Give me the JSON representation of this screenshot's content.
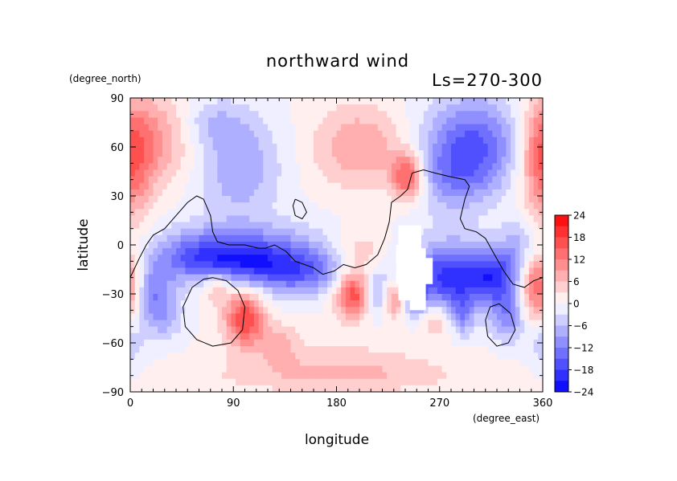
{
  "chart_data": {
    "type": "heatmap",
    "title": "northward wind",
    "subtitle": "Ls=270-300",
    "xlabel": "longitude",
    "ylabel": "latitude",
    "xunits": "(degree_east)",
    "yunits": "(degree_north)",
    "xlim": [
      0,
      360
    ],
    "ylim": [
      -90,
      90
    ],
    "xticks": [
      0,
      90,
      180,
      270,
      360
    ],
    "yticks": [
      -90,
      -60,
      -30,
      0,
      30,
      60,
      90
    ],
    "colorbar": {
      "levels": [
        -24,
        -18,
        -12,
        -6,
        0,
        6,
        12,
        18,
        24
      ],
      "range": [
        -24,
        24
      ],
      "neg_color": "#0000ff",
      "mid_color": "#ffffff",
      "pos_color": "#ff0000"
    },
    "features": [
      {
        "lon": 20,
        "lat": 65,
        "value": 9,
        "sx": 25,
        "sy": 20
      },
      {
        "lon": 0,
        "lat": 50,
        "value": 7,
        "sx": 15,
        "sy": 25
      },
      {
        "lon": 360,
        "lat": 50,
        "value": 6,
        "sx": 12,
        "sy": 25
      },
      {
        "lon": 95,
        "lat": 48,
        "value": -9,
        "sx": 25,
        "sy": 22
      },
      {
        "lon": 70,
        "lat": 75,
        "value": -5,
        "sx": 20,
        "sy": 10
      },
      {
        "lon": 200,
        "lat": 60,
        "value": 9,
        "sx": 28,
        "sy": 18
      },
      {
        "lon": 242,
        "lat": 42,
        "value": 17,
        "sx": 10,
        "sy": 10
      },
      {
        "lon": 300,
        "lat": 62,
        "value": -15,
        "sx": 30,
        "sy": 20
      },
      {
        "lon": 280,
        "lat": 40,
        "value": -7,
        "sx": 25,
        "sy": 15
      },
      {
        "lon": 120,
        "lat": 5,
        "value": -4,
        "sx": 40,
        "sy": 10
      },
      {
        "lon": 100,
        "lat": -10,
        "value": -16,
        "sx": 45,
        "sy": 10
      },
      {
        "lon": 150,
        "lat": -18,
        "value": -10,
        "sx": 30,
        "sy": 10
      },
      {
        "lon": 60,
        "lat": -5,
        "value": -8,
        "sx": 30,
        "sy": 12
      },
      {
        "lon": 200,
        "lat": -5,
        "value": 6,
        "sx": 15,
        "sy": 10
      },
      {
        "lon": 280,
        "lat": -20,
        "value": -20,
        "sx": 25,
        "sy": 15
      },
      {
        "lon": 320,
        "lat": -20,
        "value": -14,
        "sx": 15,
        "sy": 12
      },
      {
        "lon": 195,
        "lat": -30,
        "value": 18,
        "sx": 12,
        "sy": 10
      },
      {
        "lon": 215,
        "lat": -30,
        "value": -10,
        "sx": 8,
        "sy": 10
      },
      {
        "lon": 230,
        "lat": -33,
        "value": 12,
        "sx": 7,
        "sy": 8
      },
      {
        "lon": 250,
        "lat": -30,
        "value": -10,
        "sx": 7,
        "sy": 10
      },
      {
        "lon": 100,
        "lat": -45,
        "value": 18,
        "sx": 12,
        "sy": 12
      },
      {
        "lon": 75,
        "lat": -25,
        "value": 8,
        "sx": 10,
        "sy": 8
      },
      {
        "lon": 20,
        "lat": -30,
        "value": -10,
        "sx": 12,
        "sy": 12
      },
      {
        "lon": 30,
        "lat": -45,
        "value": -6,
        "sx": 12,
        "sy": 10
      },
      {
        "lon": 355,
        "lat": -25,
        "value": 16,
        "sx": 10,
        "sy": 15
      },
      {
        "lon": 340,
        "lat": 0,
        "value": -6,
        "sx": 12,
        "sy": 12
      },
      {
        "lon": 330,
        "lat": -45,
        "value": -10,
        "sx": 10,
        "sy": 10
      },
      {
        "lon": 290,
        "lat": -45,
        "value": -8,
        "sx": 6,
        "sy": 8
      },
      {
        "lon": 265,
        "lat": -45,
        "value": 8,
        "sx": 10,
        "sy": 8
      },
      {
        "lon": 130,
        "lat": -60,
        "value": 6,
        "sx": 12,
        "sy": 8
      },
      {
        "lon": 180,
        "lat": -70,
        "value": 3,
        "sx": 60,
        "sy": 12
      },
      {
        "lon": 180,
        "lat": -80,
        "value": 5,
        "sx": 80,
        "sy": 8
      },
      {
        "lon": 360,
        "lat": -60,
        "value": -5,
        "sx": 10,
        "sy": 10
      }
    ],
    "missing_region": [
      [
        234,
        12
      ],
      [
        254,
        12
      ],
      [
        254,
        -2
      ],
      [
        258,
        -2
      ],
      [
        258,
        -8
      ],
      [
        264,
        -8
      ],
      [
        264,
        -24
      ],
      [
        258,
        -24
      ],
      [
        258,
        -40
      ],
      [
        244,
        -40
      ],
      [
        244,
        -34
      ],
      [
        234,
        -34
      ],
      [
        234,
        -24
      ],
      [
        232,
        -24
      ],
      [
        232,
        0
      ],
      [
        234,
        0
      ]
    ],
    "contours": [
      [
        [
          0,
          -20
        ],
        [
          8,
          -8
        ],
        [
          14,
          0
        ],
        [
          20,
          6
        ],
        [
          30,
          10
        ],
        [
          40,
          18
        ],
        [
          50,
          26
        ],
        [
          58,
          30
        ],
        [
          64,
          28
        ],
        [
          70,
          18
        ],
        [
          72,
          8
        ],
        [
          76,
          2
        ],
        [
          86,
          0
        ],
        [
          100,
          0
        ],
        [
          112,
          -2
        ],
        [
          118,
          -2
        ],
        [
          126,
          0
        ],
        [
          136,
          -4
        ],
        [
          144,
          -10
        ],
        [
          152,
          -12
        ],
        [
          160,
          -14
        ],
        [
          168,
          -18
        ],
        [
          178,
          -16
        ],
        [
          186,
          -12
        ],
        [
          196,
          -14
        ],
        [
          206,
          -12
        ],
        [
          216,
          -6
        ],
        [
          222,
          4
        ],
        [
          226,
          14
        ],
        [
          228,
          26
        ],
        [
          236,
          30
        ],
        [
          242,
          34
        ],
        [
          246,
          44
        ],
        [
          256,
          46
        ],
        [
          266,
          44
        ],
        [
          278,
          42
        ],
        [
          292,
          40
        ],
        [
          296,
          36
        ],
        [
          292,
          28
        ],
        [
          288,
          16
        ],
        [
          292,
          10
        ],
        [
          302,
          8
        ],
        [
          310,
          4
        ],
        [
          318,
          -6
        ],
        [
          326,
          -16
        ],
        [
          334,
          -24
        ],
        [
          344,
          -26
        ],
        [
          352,
          -22
        ],
        [
          360,
          -20
        ]
      ],
      [
        [
          144,
          28
        ],
        [
          150,
          26
        ],
        [
          154,
          20
        ],
        [
          150,
          16
        ],
        [
          144,
          18
        ],
        [
          142,
          24
        ],
        [
          144,
          28
        ]
      ],
      [
        [
          72,
          -20
        ],
        [
          84,
          -22
        ],
        [
          94,
          -28
        ],
        [
          100,
          -38
        ],
        [
          98,
          -52
        ],
        [
          88,
          -60
        ],
        [
          72,
          -62
        ],
        [
          58,
          -58
        ],
        [
          48,
          -50
        ],
        [
          46,
          -38
        ],
        [
          54,
          -26
        ],
        [
          64,
          -21
        ],
        [
          72,
          -20
        ]
      ],
      [
        [
          322,
          -36
        ],
        [
          332,
          -42
        ],
        [
          336,
          -52
        ],
        [
          330,
          -60
        ],
        [
          320,
          -62
        ],
        [
          312,
          -56
        ],
        [
          310,
          -46
        ],
        [
          314,
          -38
        ],
        [
          322,
          -36
        ]
      ]
    ]
  }
}
